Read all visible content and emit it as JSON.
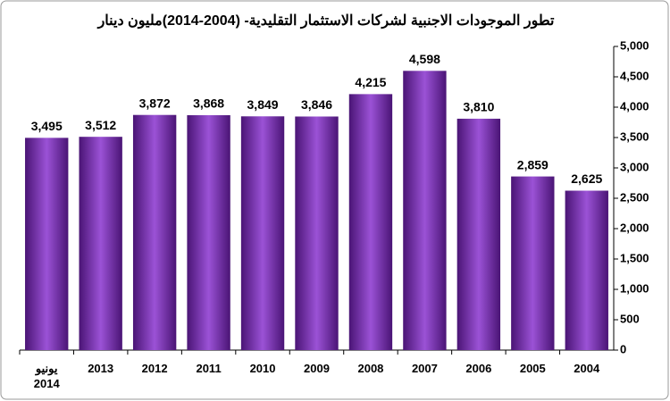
{
  "chart_data": {
    "type": "bar",
    "title": "تطور الموجودات الاجنبية لشركات الاستثمار التقليدية- (2004-2014)مليون دينار",
    "categories": [
      "يونيو\n2014",
      "2013",
      "2012",
      "2011",
      "2010",
      "2009",
      "2008",
      "2007",
      "2006",
      "2005",
      "2004"
    ],
    "values": [
      3495,
      3512,
      3872,
      3868,
      3849,
      3846,
      4215,
      4598,
      3810,
      2859,
      2625
    ],
    "value_labels": [
      "3,495",
      "3,512",
      "3,872",
      "3,868",
      "3,849",
      "3,846",
      "4,215",
      "4,598",
      "3,810",
      "2,859",
      "2,625"
    ],
    "color": "#7a2fb0",
    "ylim": [
      0,
      5000
    ],
    "yticks": [
      0,
      500,
      {
        "value": 1000,
        "label": "1,000"
      },
      {
        "value": 1500,
        "label": "1,500"
      },
      {
        "value": 2000,
        "label": "2,000"
      },
      {
        "value": 2500,
        "label": "2,500"
      },
      {
        "value": 3000,
        "label": "3,000"
      },
      {
        "value": 3500,
        "label": "3,500"
      },
      {
        "value": 4000,
        "label": "4,000"
      },
      {
        "value": 4500,
        "label": "4,500"
      },
      {
        "value": 5000,
        "label": "5,000"
      }
    ],
    "grid": false
  }
}
